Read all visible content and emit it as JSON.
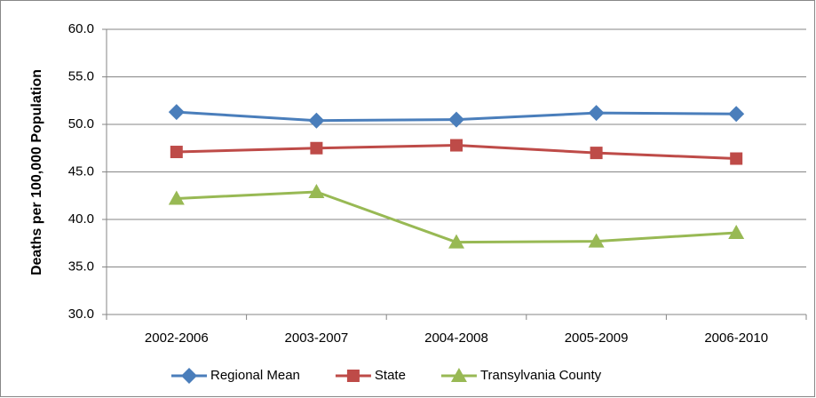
{
  "chart_data": {
    "type": "line",
    "y_label": "Deaths per 100,000 Population",
    "categories": [
      "2002-2006",
      "2003-2007",
      "2004-2008",
      "2005-2009",
      "2006-2010"
    ],
    "series": [
      {
        "name": "Regional Mean",
        "color": "#4a7ebb",
        "marker": "diamond",
        "values": [
          51.3,
          50.4,
          50.5,
          51.2,
          51.1
        ]
      },
      {
        "name": "State",
        "color": "#be4b48",
        "marker": "square",
        "values": [
          47.1,
          47.5,
          47.8,
          47.0,
          46.4
        ]
      },
      {
        "name": "Transylvania County",
        "color": "#98b954",
        "marker": "triangle",
        "values": [
          42.2,
          42.9,
          37.6,
          37.7,
          38.6
        ]
      }
    ],
    "ylim": [
      30,
      60
    ],
    "yticks": [
      {
        "value": 30,
        "label": "30.0"
      },
      {
        "value": 35,
        "label": "35.0"
      },
      {
        "value": 40,
        "label": "40.0"
      },
      {
        "value": 45,
        "label": "45.0"
      },
      {
        "value": 50,
        "label": "50.0"
      },
      {
        "value": 55,
        "label": "55.0"
      },
      {
        "value": 60,
        "label": "60.0"
      }
    ],
    "grid": true,
    "legend": "bottom"
  }
}
